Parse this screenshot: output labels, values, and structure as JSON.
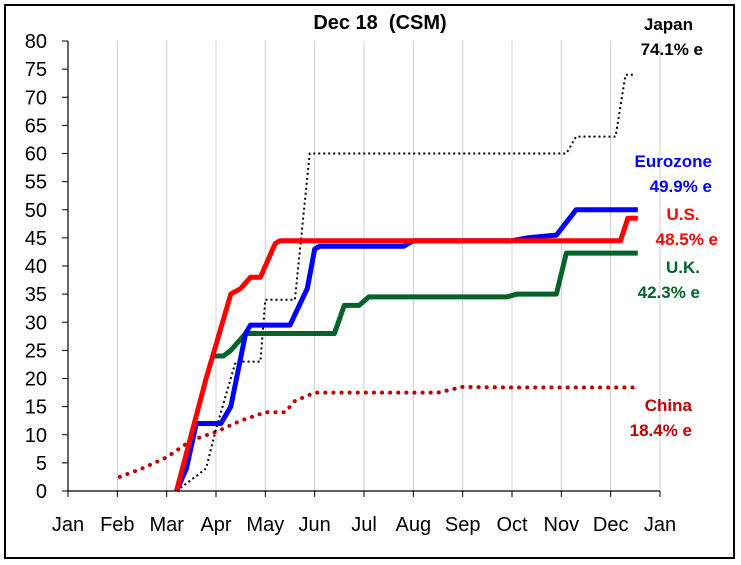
{
  "chart_data": {
    "type": "line",
    "title": "Dec 18  (CSM)",
    "xlabel": "",
    "ylabel": "",
    "x_ticks": [
      "Jan",
      "Feb",
      "Mar",
      "Apr",
      "May",
      "Jun",
      "Jul",
      "Aug",
      "Sep",
      "Oct",
      "Nov",
      "Dec",
      "Jan"
    ],
    "y_ticks": [
      "0",
      "5",
      "10",
      "15",
      "20",
      "25",
      "30",
      "35",
      "40",
      "45",
      "50",
      "55",
      "60",
      "65",
      "70",
      "75",
      "80"
    ],
    "xlim": [
      0,
      12
    ],
    "ylim": [
      0,
      80
    ],
    "grid": "vertical",
    "legend": "inline labels at right",
    "series": [
      {
        "name": "Japan",
        "label_value": "74.1% e",
        "color": "#000000",
        "style": "dotted-thin",
        "x": [
          2.2,
          2.8,
          3.0,
          3.4,
          3.9,
          4.0,
          4.6,
          4.9,
          5.0,
          10.1,
          10.3,
          11.1,
          11.3,
          11.45
        ],
        "y": [
          0,
          4,
          11,
          23,
          23,
          34,
          34,
          60,
          60,
          60,
          63,
          63,
          74,
          74
        ]
      },
      {
        "name": "Eurozone",
        "label_value": "49.9% e",
        "color": "#0000ff",
        "style": "solid",
        "x": [
          2.2,
          2.4,
          2.6,
          3.1,
          3.3,
          3.6,
          3.7,
          4.5,
          4.85,
          5.0,
          5.1,
          6.8,
          7.0,
          9.0,
          9.3,
          9.9,
          10.3,
          11.55
        ],
        "y": [
          0,
          4,
          12,
          12,
          15,
          28,
          29.5,
          29.5,
          36,
          43,
          43.5,
          43.5,
          44.5,
          44.5,
          45,
          45.5,
          50,
          50
        ]
      },
      {
        "name": "U.S.",
        "label_value": "48.5% e",
        "color": "#ff0000",
        "style": "solid",
        "x": [
          2.2,
          2.5,
          2.8,
          3.0,
          3.3,
          3.5,
          3.7,
          3.9,
          4.2,
          4.3,
          11.2,
          11.35,
          11.55
        ],
        "y": [
          0,
          10,
          20,
          26,
          35,
          36,
          38,
          38,
          44,
          44.5,
          44.5,
          48.5,
          48.5
        ]
      },
      {
        "name": "U.K.",
        "label_value": "42.3% e",
        "color": "#00642a",
        "style": "solid",
        "x": [
          2.9,
          3.15,
          3.3,
          3.6,
          5.4,
          5.6,
          5.9,
          6.1,
          8.9,
          9.1,
          9.9,
          10.1,
          11.55
        ],
        "y": [
          24,
          24,
          25,
          28,
          28,
          33,
          33,
          34.5,
          34.5,
          35,
          35,
          42.3,
          42.3
        ]
      },
      {
        "name": "China",
        "label_value": "18.4% e",
        "color": "#c00000",
        "style": "dotted-thick",
        "x": [
          1.05,
          1.5,
          2.0,
          2.5,
          3.0,
          3.5,
          4.0,
          4.4,
          4.6,
          5.0,
          5.5,
          6.5,
          7.5,
          8.0,
          9.0,
          10.0,
          11.0,
          11.5
        ],
        "y": [
          2.5,
          4,
          6,
          9,
          10.5,
          12.5,
          14,
          14,
          16,
          17.5,
          17.5,
          17.5,
          17.5,
          18.5,
          18.4,
          18.4,
          18.4,
          18.4
        ]
      }
    ]
  }
}
